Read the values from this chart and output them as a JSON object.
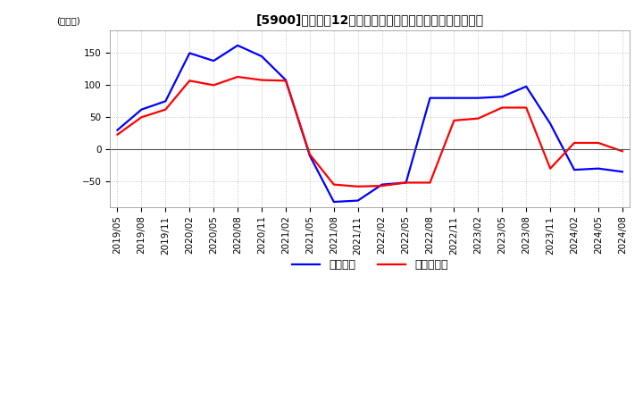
{
  "title": "[5900]　利益の12か月移動合計の対前年同期増減額の推移",
  "ylabel": "(百万円)",
  "legend_labels": [
    "経常利益",
    "当期純利益"
  ],
  "line_colors": [
    "#0000ff",
    "#ff0000"
  ],
  "ylim": [
    -90,
    185
  ],
  "yticks": [
    -50,
    0,
    50,
    100,
    150
  ],
  "x_labels": [
    "2019/05",
    "2019/08",
    "2019/11",
    "2020/02",
    "2020/05",
    "2020/08",
    "2020/11",
    "2021/02",
    "2021/05",
    "2021/08",
    "2021/11",
    "2022/02",
    "2022/05",
    "2022/08",
    "2022/11",
    "2023/02",
    "2023/05",
    "2023/08",
    "2023/11",
    "2024/02",
    "2024/05",
    "2024/08"
  ],
  "operating_profit": [
    30,
    62,
    75,
    150,
    138,
    162,
    145,
    108,
    -10,
    -82,
    -80,
    -55,
    -52,
    80,
    80,
    80,
    82,
    98,
    40,
    -32,
    -30,
    -35
  ],
  "net_profit": [
    23,
    50,
    62,
    107,
    100,
    113,
    108,
    107,
    -8,
    -55,
    -58,
    -57,
    -52,
    -52,
    45,
    48,
    65,
    65,
    -30,
    10,
    10,
    -3
  ],
  "background_color": "#ffffff",
  "grid_color": "#aaaaaa",
  "title_fontsize": 10,
  "tick_fontsize": 7.5,
  "legend_fontsize": 9
}
